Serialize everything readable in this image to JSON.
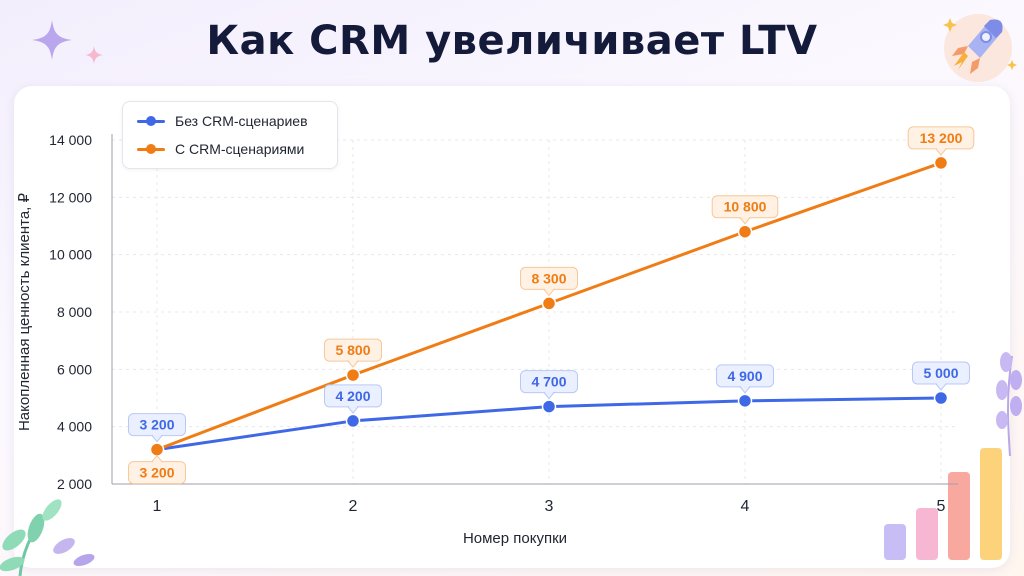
{
  "title": "Как CRM увеличивает LTV",
  "colors": {
    "series_without": "#3f68e6",
    "series_with": "#f07c15",
    "title": "#141a3a"
  },
  "chart_data": {
    "type": "line",
    "x": [
      1,
      2,
      3,
      4,
      5
    ],
    "xlabel": "Номер покупки",
    "ylabel": "Накопленная ценность клиента, ₽",
    "ylim": [
      2000,
      14000
    ],
    "yticks": [
      "2 000",
      "4 000",
      "6 000",
      "8 000",
      "10 000",
      "12 000",
      "14 000"
    ],
    "xticks": [
      "1",
      "2",
      "3",
      "4",
      "5"
    ],
    "grid": true,
    "legend_position": "top-left",
    "series": [
      {
        "name": "Без CRM-сценариев",
        "values": [
          3200,
          4200,
          4700,
          4900,
          5000
        ],
        "labels": [
          "3 200",
          "4 200",
          "4 700",
          "4 900",
          "5 000"
        ]
      },
      {
        "name": "С CRM-сценариями",
        "values": [
          3200,
          5800,
          8300,
          10800,
          13200
        ],
        "labels": [
          "3 200",
          "5 800",
          "8 300",
          "10 800",
          "13 200"
        ]
      }
    ]
  },
  "decorations": [
    "sparkle-icon",
    "rocket-icon",
    "leaf-icon",
    "lavender-icon",
    "bar-chart-icon"
  ]
}
